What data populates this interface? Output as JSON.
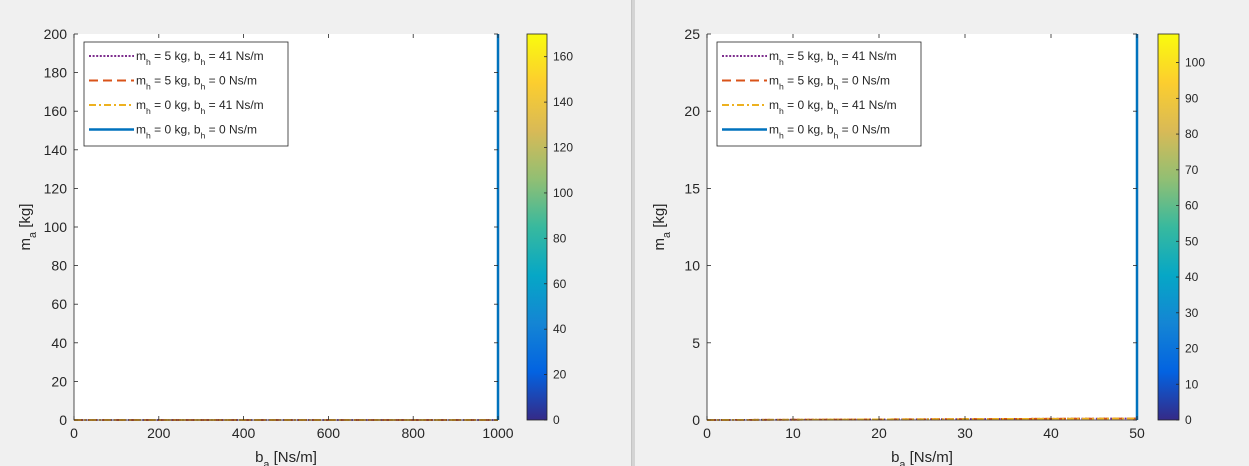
{
  "chart_data": [
    {
      "type": "line",
      "xlabel": "b_a [Ns/m]",
      "ylabel": "m_a [kg]",
      "xlim": [
        0,
        1000
      ],
      "ylim": [
        0,
        200
      ],
      "xticks": [
        0,
        200,
        400,
        600,
        800,
        1000
      ],
      "yticks": [
        0,
        20,
        40,
        60,
        80,
        100,
        120,
        140,
        160,
        180,
        200
      ],
      "grid": false,
      "legend_location": "top-left",
      "series": [
        {
          "name": "m_h = 5 kg, b_h = 41 Ns/m",
          "style": "dotted",
          "color": "#7E2F8E",
          "x": [
            0,
            1000
          ],
          "y": [
            0,
            0
          ]
        },
        {
          "name": "m_h = 5 kg, b_h = 0 Ns/m",
          "style": "dashed",
          "color": "#D95319",
          "x": [
            0,
            1000
          ],
          "y": [
            0,
            0
          ]
        },
        {
          "name": "m_h = 0 kg, b_h = 41 Ns/m",
          "style": "dashdot",
          "color": "#EDB120",
          "x": [
            0,
            1000
          ],
          "y": [
            0,
            0
          ]
        },
        {
          "name": "m_h = 0 kg, b_h = 0 Ns/m",
          "style": "solid",
          "color": "#0072BD",
          "x": [
            1000,
            1000
          ],
          "y": [
            0,
            200
          ]
        }
      ],
      "colorbar": {
        "range": [
          0,
          170
        ],
        "ticks": [
          0,
          20,
          40,
          60,
          80,
          100,
          120,
          140,
          160
        ],
        "colormap": "parula"
      }
    },
    {
      "type": "line",
      "xlabel": "b_a [Ns/m]",
      "ylabel": "m_a [kg]",
      "xlim": [
        0,
        50
      ],
      "ylim": [
        0,
        25
      ],
      "xticks": [
        0,
        10,
        20,
        30,
        40,
        50
      ],
      "yticks": [
        0,
        5,
        10,
        15,
        20,
        25
      ],
      "grid": false,
      "legend_location": "top-left",
      "series": [
        {
          "name": "m_h = 5 kg, b_h = 41 Ns/m",
          "style": "dotted",
          "color": "#7E2F8E",
          "x": [
            0,
            50
          ],
          "y": [
            0,
            0.1
          ]
        },
        {
          "name": "m_h = 5 kg, b_h = 0 Ns/m",
          "style": "dashed",
          "color": "#D95319",
          "x": [
            0,
            50
          ],
          "y": [
            0,
            0.1
          ]
        },
        {
          "name": "m_h = 0 kg, b_h = 41 Ns/m",
          "style": "dashdot",
          "color": "#EDB120",
          "x": [
            0,
            50
          ],
          "y": [
            0,
            0.1
          ]
        },
        {
          "name": "m_h = 0 kg, b_h = 0 Ns/m",
          "style": "solid",
          "color": "#0072BD",
          "x": [
            50,
            50
          ],
          "y": [
            0,
            25
          ]
        }
      ],
      "colorbar": {
        "range": [
          0,
          108
        ],
        "ticks": [
          0,
          10,
          20,
          30,
          40,
          50,
          60,
          70,
          80,
          90,
          100
        ],
        "colormap": "parula"
      }
    }
  ]
}
